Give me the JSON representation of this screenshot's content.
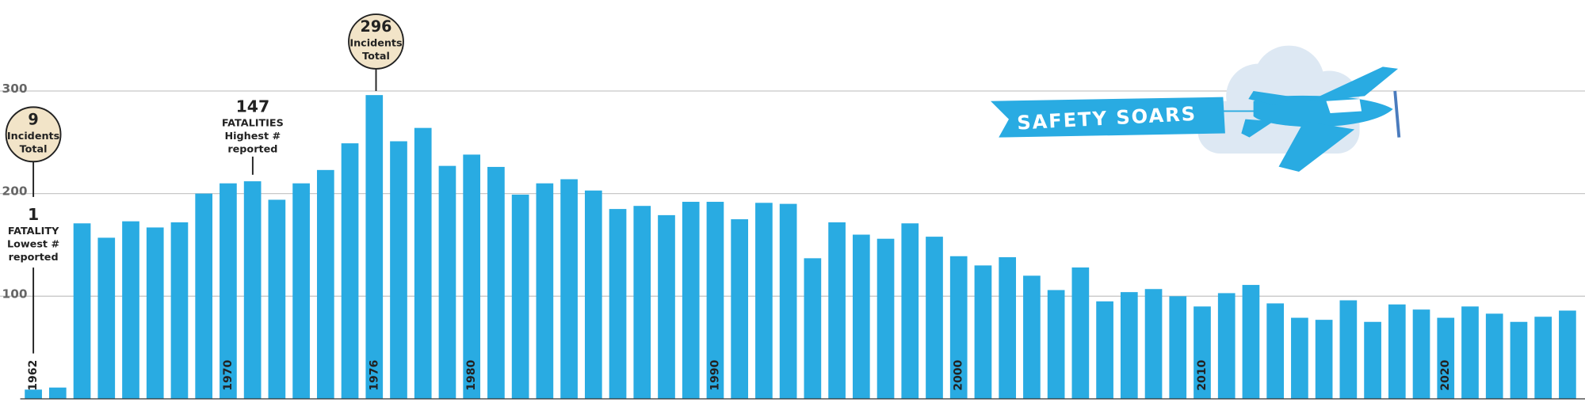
{
  "chart_data": {
    "type": "bar",
    "categories": [
      "1962",
      null,
      null,
      null,
      null,
      null,
      null,
      null,
      "1970",
      null,
      null,
      null,
      null,
      null,
      "1976",
      null,
      null,
      null,
      "1980",
      null,
      null,
      null,
      null,
      null,
      null,
      null,
      null,
      null,
      "1990",
      null,
      null,
      null,
      null,
      null,
      null,
      null,
      null,
      null,
      "2000",
      null,
      null,
      null,
      null,
      null,
      null,
      null,
      null,
      null,
      "2010",
      null,
      null,
      null,
      null,
      null,
      null,
      null,
      null,
      null,
      "2020",
      null,
      null,
      null,
      null,
      null
    ],
    "values": [
      9,
      11,
      171,
      157,
      173,
      167,
      172,
      200,
      210,
      212,
      194,
      210,
      223,
      249,
      296,
      251,
      264,
      227,
      238,
      226,
      199,
      210,
      214,
      203,
      185,
      188,
      179,
      192,
      192,
      175,
      191,
      190,
      137,
      172,
      160,
      156,
      171,
      158,
      139,
      130,
      138,
      120,
      106,
      128,
      95,
      104,
      107,
      100,
      90,
      103,
      111,
      93,
      79,
      77,
      96,
      75,
      92,
      87,
      79,
      90,
      83,
      75,
      80,
      86
    ],
    "color": "#29abe2",
    "ylim": [
      0,
      300
    ],
    "yticks": [
      100,
      200,
      300
    ],
    "grid": true,
    "annotations": [
      {
        "value": 9,
        "lines": [
          "Incidents",
          "Total"
        ]
      },
      {
        "value": 1,
        "lines": [
          "FATALITY",
          "Lowest #",
          "reported"
        ]
      },
      {
        "value": 147,
        "lines": [
          "FATALITIES",
          "Highest #",
          "reported"
        ]
      },
      {
        "value": 296,
        "lines": [
          "Incidents",
          "Total"
        ]
      }
    ],
    "banner": "SAFETY SOARS"
  }
}
